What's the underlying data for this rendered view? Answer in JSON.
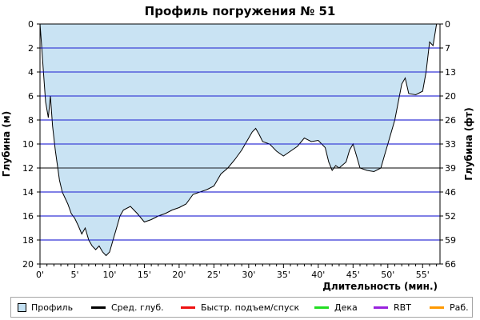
{
  "chart_data": {
    "type": "area",
    "title": "Профиль погружения № 51",
    "xlabel": "Длительность (мин.)",
    "ylabel_left": "Глубина (м)",
    "ylabel_right": "Глубина (фт)",
    "xlim": [
      0,
      57.5
    ],
    "ylim": [
      0,
      20
    ],
    "y_inverted": true,
    "grid": true,
    "x_ticks": [
      {
        "value": 0,
        "label": "0'"
      },
      {
        "value": 5,
        "label": "5'"
      },
      {
        "value": 10,
        "label": "10'"
      },
      {
        "value": 15,
        "label": "15'"
      },
      {
        "value": 20,
        "label": "20'"
      },
      {
        "value": 25,
        "label": "25'"
      },
      {
        "value": 30,
        "label": "30'"
      },
      {
        "value": 35,
        "label": "35'"
      },
      {
        "value": 40,
        "label": "40'"
      },
      {
        "value": 45,
        "label": "45'"
      },
      {
        "value": 50,
        "label": "50'"
      },
      {
        "value": 55,
        "label": "55'"
      }
    ],
    "y_ticks_left": [
      {
        "value": 0,
        "label": "0"
      },
      {
        "value": 2,
        "label": "2"
      },
      {
        "value": 4,
        "label": "4"
      },
      {
        "value": 6,
        "label": "6"
      },
      {
        "value": 8,
        "label": "8"
      },
      {
        "value": 10,
        "label": "10"
      },
      {
        "value": 12,
        "label": "12"
      },
      {
        "value": 14,
        "label": "14"
      },
      {
        "value": 16,
        "label": "16"
      },
      {
        "value": 18,
        "label": "18"
      },
      {
        "value": 20,
        "label": "20"
      }
    ],
    "y_ticks_right": [
      {
        "value": 0,
        "label": "0"
      },
      {
        "value": 2,
        "label": "7"
      },
      {
        "value": 4,
        "label": "13"
      },
      {
        "value": 6,
        "label": "20"
      },
      {
        "value": 8,
        "label": "26"
      },
      {
        "value": 10,
        "label": "33"
      },
      {
        "value": 12,
        "label": "39"
      },
      {
        "value": 14,
        "label": "46"
      },
      {
        "value": 16,
        "label": "52"
      },
      {
        "value": 18,
        "label": "59"
      },
      {
        "value": 20,
        "label": "66"
      }
    ],
    "series": [
      {
        "name": "Профиль",
        "x": [
          0,
          0.2,
          0.5,
          0.8,
          1.2,
          1.5,
          1.8,
          2.2,
          2.8,
          3.2,
          3.6,
          4.0,
          4.5,
          5.0,
          5.5,
          6.0,
          6.5,
          7.0,
          7.5,
          8.0,
          8.5,
          9.0,
          9.5,
          10.0,
          10.5,
          11.0,
          11.5,
          12.0,
          13.0,
          14.0,
          15.0,
          16.0,
          17.0,
          18.0,
          19.0,
          20.0,
          21.0,
          22.0,
          23.0,
          24.0,
          25.0,
          26.0,
          27.0,
          28.0,
          29.0,
          30.0,
          30.5,
          31.0,
          31.5,
          32.0,
          33.0,
          34.0,
          35.0,
          36.0,
          37.0,
          38.0,
          39.0,
          40.0,
          41.0,
          41.5,
          42.0,
          42.5,
          43.0,
          44.0,
          44.5,
          45.0,
          45.5,
          46.0,
          47.0,
          48.0,
          49.0,
          49.5,
          50.0,
          51.0,
          52.0,
          52.5,
          53.0,
          54.0,
          55.0,
          55.5,
          56.0,
          56.5,
          57.0
        ],
        "depth": [
          0,
          1.5,
          4.0,
          6.5,
          7.8,
          6.0,
          8.5,
          10.5,
          13.0,
          14.0,
          14.5,
          15.0,
          15.8,
          16.2,
          16.8,
          17.5,
          17.0,
          18.0,
          18.5,
          18.8,
          18.5,
          19.0,
          19.3,
          19.0,
          18.0,
          17.0,
          16.0,
          15.5,
          15.2,
          15.8,
          16.5,
          16.3,
          16.0,
          15.8,
          15.5,
          15.3,
          15.0,
          14.2,
          14.0,
          13.8,
          13.5,
          12.5,
          12.0,
          11.3,
          10.5,
          9.5,
          9.0,
          8.7,
          9.2,
          9.8,
          10.0,
          10.6,
          11.0,
          10.6,
          10.2,
          9.5,
          9.8,
          9.7,
          10.3,
          11.5,
          12.2,
          11.8,
          12.0,
          11.5,
          10.5,
          10.0,
          11.0,
          12.0,
          12.2,
          12.3,
          12.0,
          11.0,
          10.0,
          8.0,
          5.0,
          4.5,
          5.8,
          5.9,
          5.6,
          4.0,
          1.5,
          1.8,
          0
        ]
      }
    ]
  },
  "legend": [
    {
      "label": "Профиль",
      "kind": "box",
      "color": "#c3e0f2"
    },
    {
      "label": "Сред. глуб.",
      "kind": "line",
      "color": "#000000"
    },
    {
      "label": "Быстр. подъем/спуск",
      "kind": "line",
      "color": "#ee1111"
    },
    {
      "label": "Дека",
      "kind": "line",
      "color": "#22dd22"
    },
    {
      "label": "RBT",
      "kind": "line",
      "color": "#9922dd"
    },
    {
      "label": "Раб.",
      "kind": "line",
      "color": "#ff9900"
    }
  ],
  "colors": {
    "area_fill": "#c3e0f2",
    "profile_line": "#000000",
    "grid": "#0000cc"
  }
}
